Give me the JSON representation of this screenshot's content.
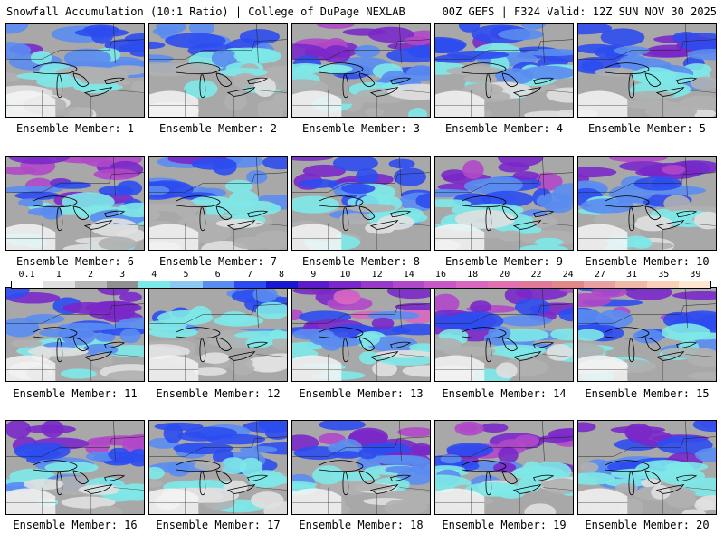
{
  "header": {
    "left": "Snowfall Accumulation (10:1 Ratio) | College of DuPage NEXLAB",
    "right": "00Z GEFS | F324 Valid: 12Z SUN NOV 30 2025"
  },
  "colorbar": {
    "labels": [
      "0.1",
      "1",
      "2",
      "3",
      "4",
      "5",
      "6",
      "7",
      "8",
      "9",
      "10",
      "12",
      "14",
      "16",
      "18",
      "20",
      "22",
      "24",
      "27",
      "31",
      "35",
      "39"
    ],
    "colors": [
      "#ffffff",
      "#e0e0e0",
      "#b8b8b8",
      "#909090",
      "#7ee8e8",
      "#8cc8f0",
      "#5a8cf0",
      "#2c4cf0",
      "#1818d0",
      "#5a1cc8",
      "#7a28c8",
      "#9a38c8",
      "#b048c8",
      "#c858c8",
      "#d868c0",
      "#e070b0",
      "#e07898",
      "#e08888",
      "#e8a0a0",
      "#f0b8a8",
      "#f8d0b8",
      "#fce8d0"
    ]
  },
  "members": [
    {
      "label": "Ensemble Member: 1",
      "intensity": 0.55
    },
    {
      "label": "Ensemble Member: 2",
      "intensity": 0.5
    },
    {
      "label": "Ensemble Member: 3",
      "intensity": 0.75
    },
    {
      "label": "Ensemble Member: 4",
      "intensity": 0.6
    },
    {
      "label": "Ensemble Member: 5",
      "intensity": 0.65
    },
    {
      "label": "Ensemble Member: 6",
      "intensity": 0.75
    },
    {
      "label": "Ensemble Member: 7",
      "intensity": 0.55
    },
    {
      "label": "Ensemble Member: 8",
      "intensity": 0.6
    },
    {
      "label": "Ensemble Member: 9",
      "intensity": 0.7
    },
    {
      "label": "Ensemble Member: 10",
      "intensity": 0.7
    },
    {
      "label": "Ensemble Member: 11",
      "intensity": 0.65
    },
    {
      "label": "Ensemble Member: 12",
      "intensity": 0.45
    },
    {
      "label": "Ensemble Member: 13",
      "intensity": 0.8
    },
    {
      "label": "Ensemble Member: 14",
      "intensity": 0.7
    },
    {
      "label": "Ensemble Member: 15",
      "intensity": 0.7
    },
    {
      "label": "Ensemble Member: 16",
      "intensity": 0.75
    },
    {
      "label": "Ensemble Member: 17",
      "intensity": 0.6
    },
    {
      "label": "Ensemble Member: 18",
      "intensity": 0.7
    },
    {
      "label": "Ensemble Member: 19",
      "intensity": 0.75
    },
    {
      "label": "Ensemble Member: 20",
      "intensity": 0.7
    }
  ]
}
